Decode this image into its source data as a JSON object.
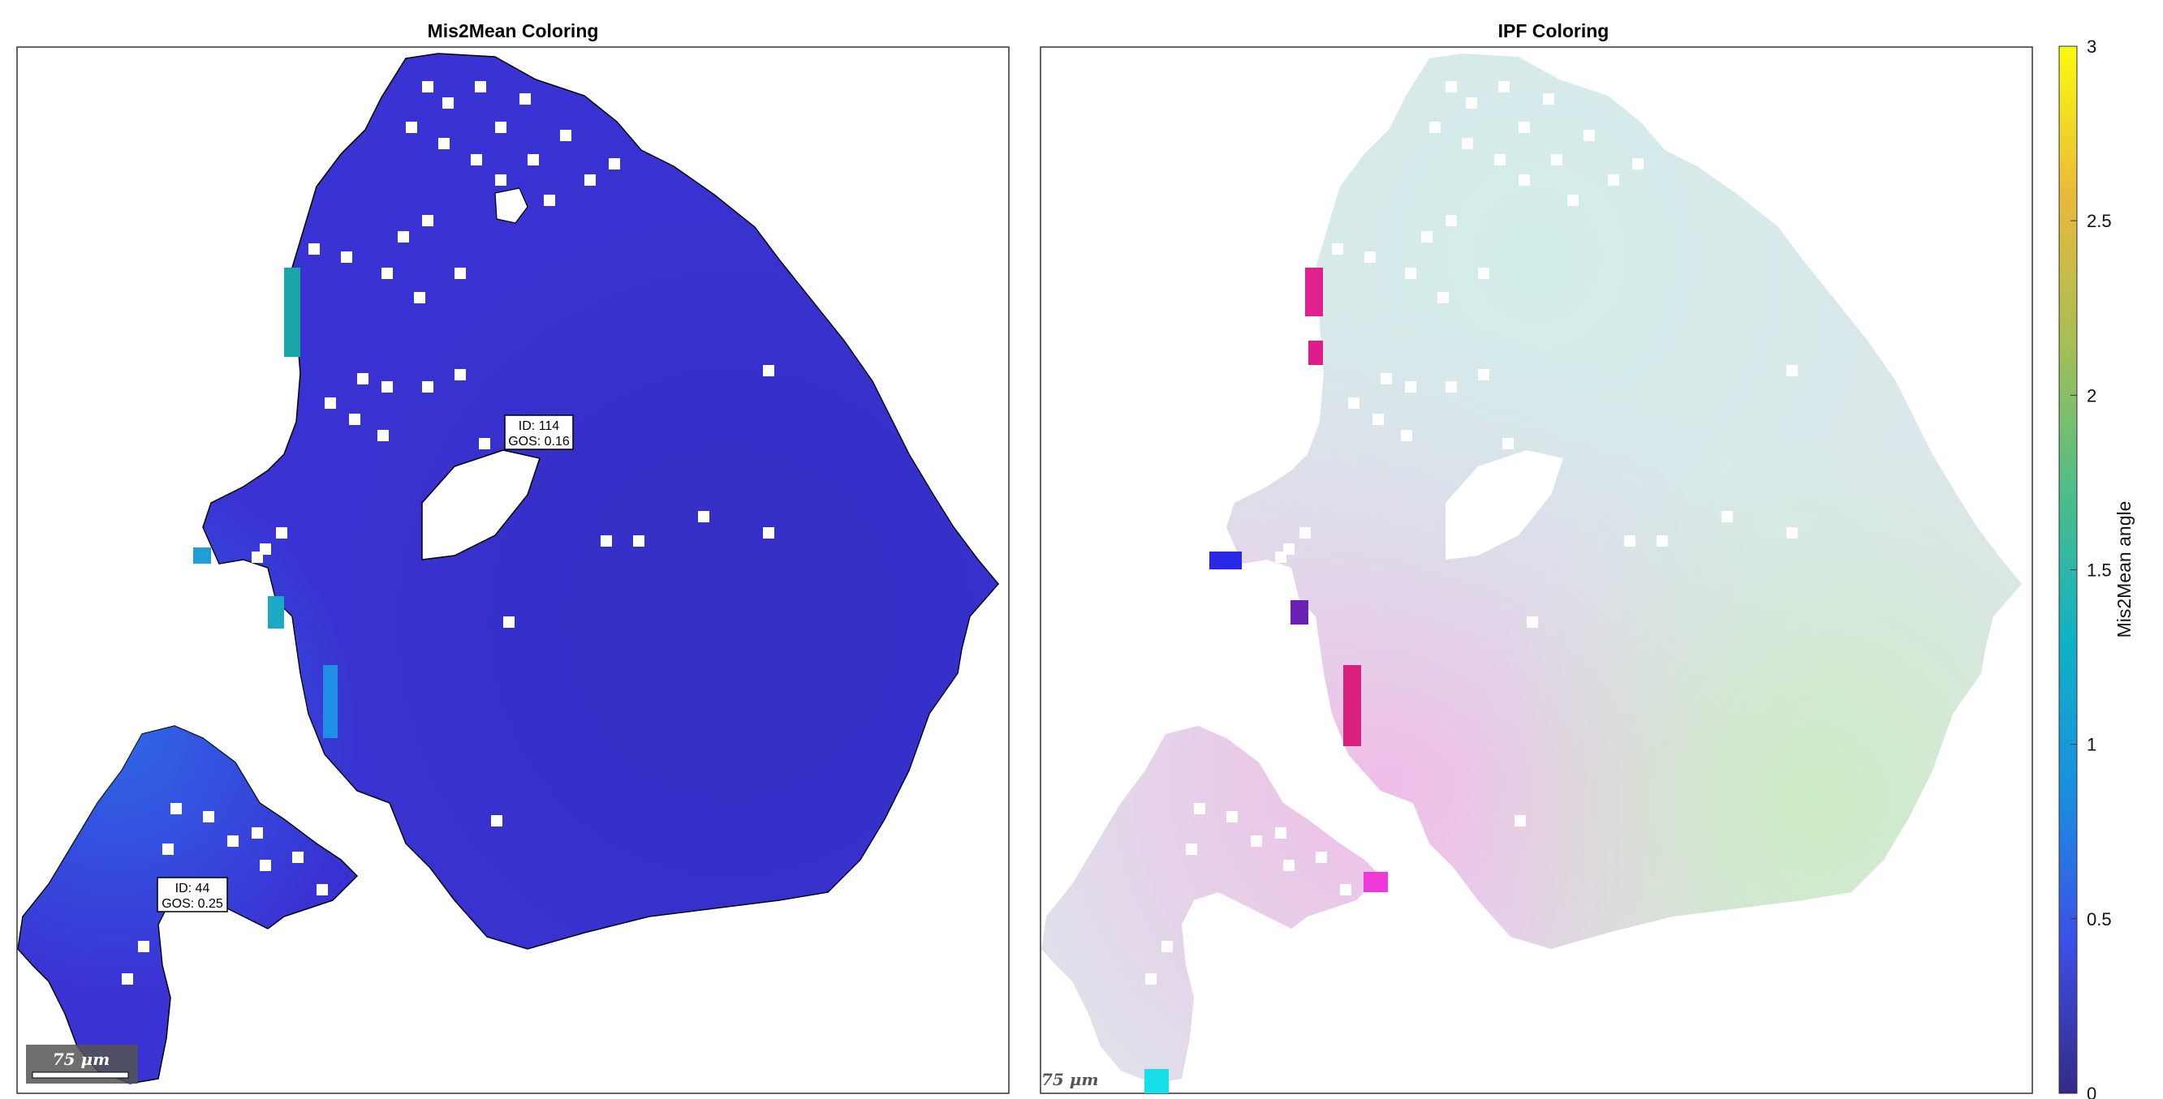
{
  "chart_data": [
    {
      "type": "heatmap",
      "title": "Mis2Mean Coloring",
      "colormap": "parula",
      "fill_color": "#3a33d4",
      "grains": [
        {
          "id_label": "ID: 114",
          "gos_label": "GOS: 0.16",
          "grain_id": 114,
          "gos": 0.16
        },
        {
          "id_label": "ID: 44",
          "gos_label": "GOS: 0.25",
          "grain_id": 44,
          "gos": 0.25
        }
      ],
      "scalebar_label": "75 μm",
      "scalebar_value_um": 75
    },
    {
      "type": "heatmap",
      "title": "IPF Coloring",
      "colormap": "ipf",
      "fill_color": "#dde6ea",
      "scalebar_label": "75 μm"
    }
  ],
  "colorbar": {
    "label": "Mis2Mean angle",
    "range": [
      0,
      3
    ],
    "ticks": [
      0,
      0.5,
      1,
      1.5,
      2,
      2.5,
      3
    ],
    "tick_labels": [
      "0",
      "0.5",
      "1",
      "1.5",
      "2",
      "2.5",
      "3"
    ],
    "stops": [
      "#352a87",
      "#3d4fe6",
      "#1a8ee0",
      "#0fb1c6",
      "#4cbd8a",
      "#a6be55",
      "#e9b93b",
      "#f9fb0e"
    ]
  }
}
